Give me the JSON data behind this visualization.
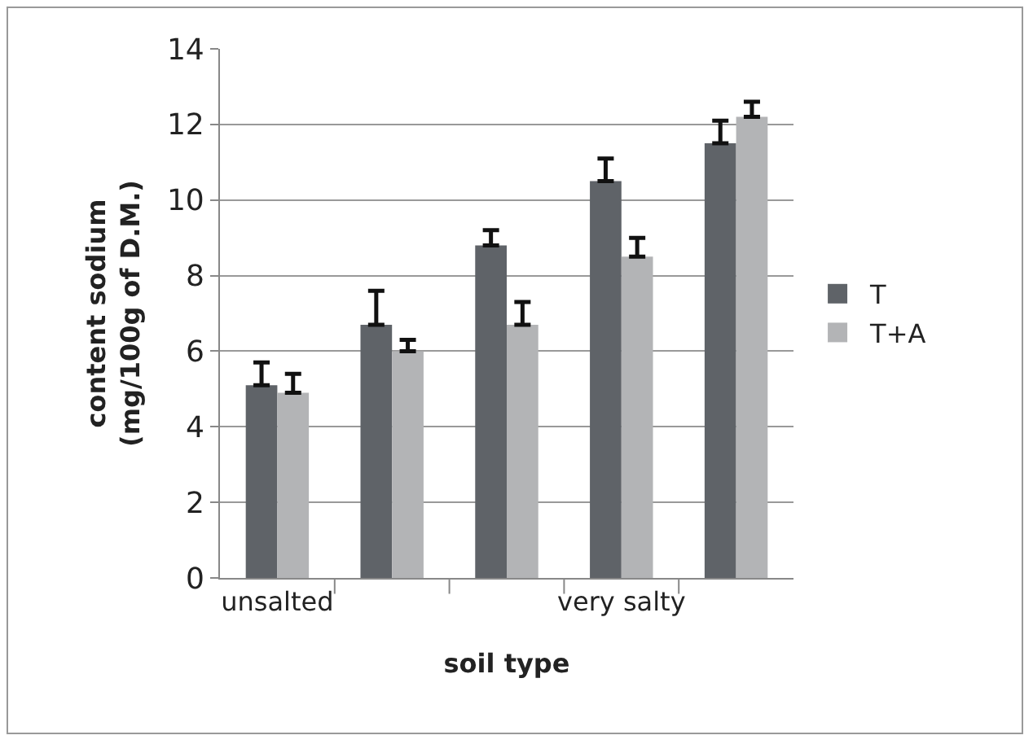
{
  "chart_data": {
    "type": "bar",
    "xlabel": "soil type",
    "ylabel": "content sodium\n(mg/100g of D.M.)",
    "categories": [
      "unsalted",
      null,
      null,
      "very salty",
      null
    ],
    "series": [
      {
        "name": "T",
        "color": "#5f6368",
        "values": [
          5.1,
          6.7,
          8.8,
          10.5,
          11.5
        ],
        "errors": [
          [
            5.1,
            5.7
          ],
          [
            6.7,
            7.6
          ],
          [
            8.8,
            9.2
          ],
          [
            10.5,
            11.1
          ],
          [
            11.5,
            12.1
          ]
        ]
      },
      {
        "name": "T+A",
        "color": "#b3b4b6",
        "values": [
          4.9,
          6.0,
          6.7,
          8.5,
          12.2
        ],
        "errors": [
          [
            4.9,
            5.4
          ],
          [
            6.0,
            6.3
          ],
          [
            6.7,
            7.3
          ],
          [
            8.5,
            9.0
          ],
          [
            12.2,
            12.6
          ]
        ]
      }
    ],
    "ylim": [
      0,
      14
    ],
    "yticks": [
      0,
      2,
      4,
      6,
      8,
      10,
      12,
      14
    ],
    "grid": "y",
    "legend": "right"
  }
}
